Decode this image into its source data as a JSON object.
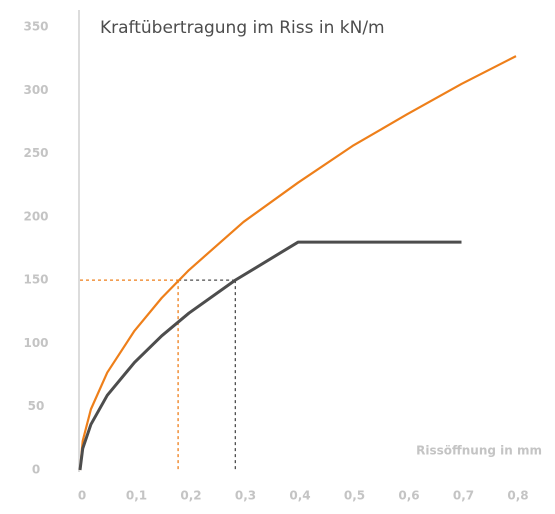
{
  "chart_data": {
    "type": "line",
    "title": "Kraftübertragung im Riss in kN/m",
    "x_label": "Rissöffnung in mm",
    "series": [
      {
        "color": "#ee7f1a",
        "x": [
          0,
          0.005,
          0.02,
          0.05,
          0.1,
          0.15,
          0.2,
          0.3,
          0.4,
          0.5,
          0.6,
          0.7,
          0.8
        ],
        "values": [
          0,
          23,
          48,
          77,
          110,
          136,
          158,
          196,
          227,
          256,
          281,
          305,
          327
        ]
      },
      {
        "color": "#4d4d4d",
        "x": [
          0,
          0.005,
          0.02,
          0.05,
          0.1,
          0.15,
          0.2,
          0.285,
          0.4,
          0.7
        ],
        "values": [
          0,
          17,
          36,
          59,
          85,
          106,
          124,
          150,
          180,
          180
        ]
      }
    ],
    "markers": [
      {
        "color": "#ee7f1a",
        "x": 0.18,
        "y": 150
      },
      {
        "color": "#4d4d4d",
        "x": 0.285,
        "y": 150
      }
    ],
    "xlim": [
      0,
      0.8
    ],
    "ylim": [
      0,
      350
    ],
    "xticks": [
      0,
      {
        "value": 0.1,
        "label": "0,1"
      },
      {
        "value": 0.2,
        "label": "0,2"
      },
      {
        "value": 0.3,
        "label": "0,3"
      },
      {
        "value": 0.4,
        "label": "0,4"
      },
      {
        "value": 0.5,
        "label": "0,5"
      },
      {
        "value": 0.6,
        "label": "0,6"
      },
      {
        "value": 0.7,
        "label": "0,7"
      },
      {
        "value": 0.8,
        "label": "0,8"
      }
    ],
    "yticks": [
      0,
      50,
      100,
      150,
      200,
      250,
      300,
      350
    ],
    "grid": false
  }
}
